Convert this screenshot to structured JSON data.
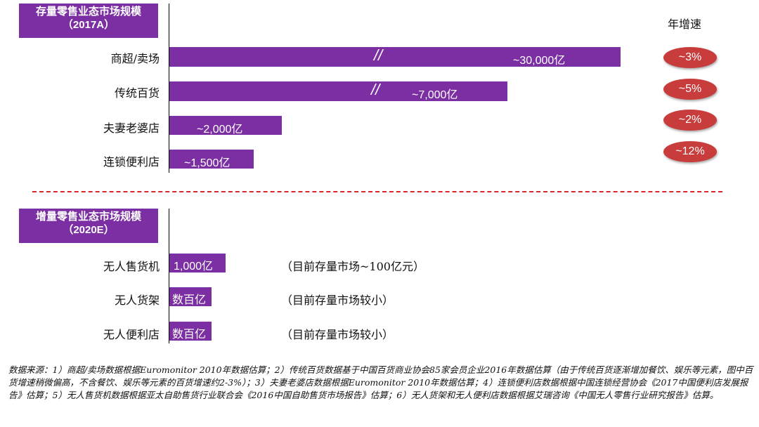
{
  "stock_header": {
    "line1": "存量零售业态市场规模",
    "line2": "（2017A）"
  },
  "incremental_header": {
    "line1": "增量零售业态市场规模",
    "line2": "（2020E）"
  },
  "growth_title": "年增速",
  "chart_data": [
    {
      "type": "bar",
      "orientation": "horizontal",
      "title": "存量零售业态市场规模（2017A）",
      "categories": [
        "商超/卖场",
        "传统百货",
        "夫妻老婆店",
        "连锁便利店"
      ],
      "values": [
        30000,
        7000,
        2000,
        1500
      ],
      "unit": "亿",
      "value_labels": [
        "~30,000亿",
        "~7,000亿",
        "~2,000亿",
        "~1,500亿"
      ],
      "axis_break": [
        true,
        true,
        false,
        false
      ],
      "annual_growth": [
        "~3%",
        "~5%",
        "~2%",
        "~12%"
      ],
      "annual_growth_label": "年增速",
      "color": "#7b2fa2"
    },
    {
      "type": "bar",
      "orientation": "horizontal",
      "title": "增量零售业态市场规模（2020E）",
      "categories": [
        "无人售货机",
        "无人货架",
        "无人便利店"
      ],
      "values": [
        1000,
        null,
        null
      ],
      "unit": "亿",
      "value_labels": [
        "1,000亿",
        "数百亿",
        "数百亿"
      ],
      "notes": [
        "（目前存量市场~100亿元）",
        "（目前存量市场较小）",
        "（目前存量市场较小）"
      ],
      "color": "#7b2fa2"
    }
  ],
  "footnote": "数据来源：1）商超/卖场数据根据Euromonitor 2010年数据估算；2）传统百货数据基于中国百货商业协会85家会员企业2016年数据估算（由于传统百货逐渐增加餐饮、娱乐等元素，图中百货增速稍微偏高，不含餐饮、娱乐等元素的百货增速约2-3%）；3）夫妻老婆店数据根据Euromonitor 2010年数据估算；4）连锁便利店数据根据中国连锁经营协会《2017中国便利店发展报告》估算；5）无人售货机数据根据亚太自助售货行业联合会《2016中国自助售货市场报告》估算；6）无人货架和无人便利店数据根据艾瑞咨询《中国无人零售行业研究报告》估算。",
  "colors": {
    "bar": "#7b2fa2",
    "badge": "#c83c3c",
    "divider": "#d9272e"
  }
}
